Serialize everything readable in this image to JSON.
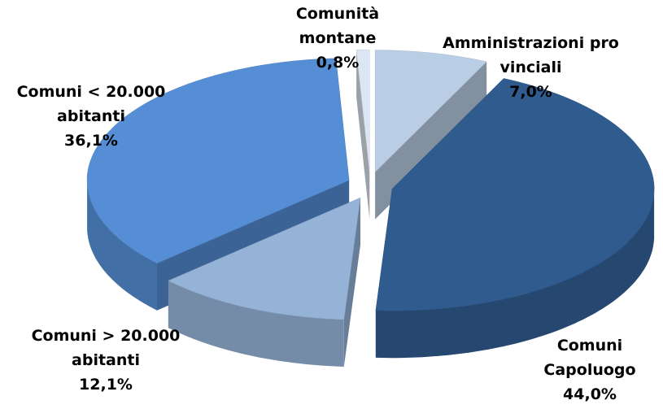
{
  "chart_data": {
    "type": "pie",
    "categories": [
      "Amministrazioni provinciali",
      "Comuni Capoluogo",
      "Comuni > 20.000 abitanti",
      "Comuni < 20.000 abitanti",
      "Comunità montane"
    ],
    "values": [
      7.0,
      44.0,
      12.1,
      36.1,
      0.8
    ],
    "value_labels": [
      "7,0%",
      "44,0%",
      "12,1%",
      "36,1%",
      "0,8%"
    ],
    "colors": [
      "#b9cde5",
      "#2f5b8f",
      "#95b3d7",
      "#558ed5",
      "#dce6f2"
    ]
  }
}
